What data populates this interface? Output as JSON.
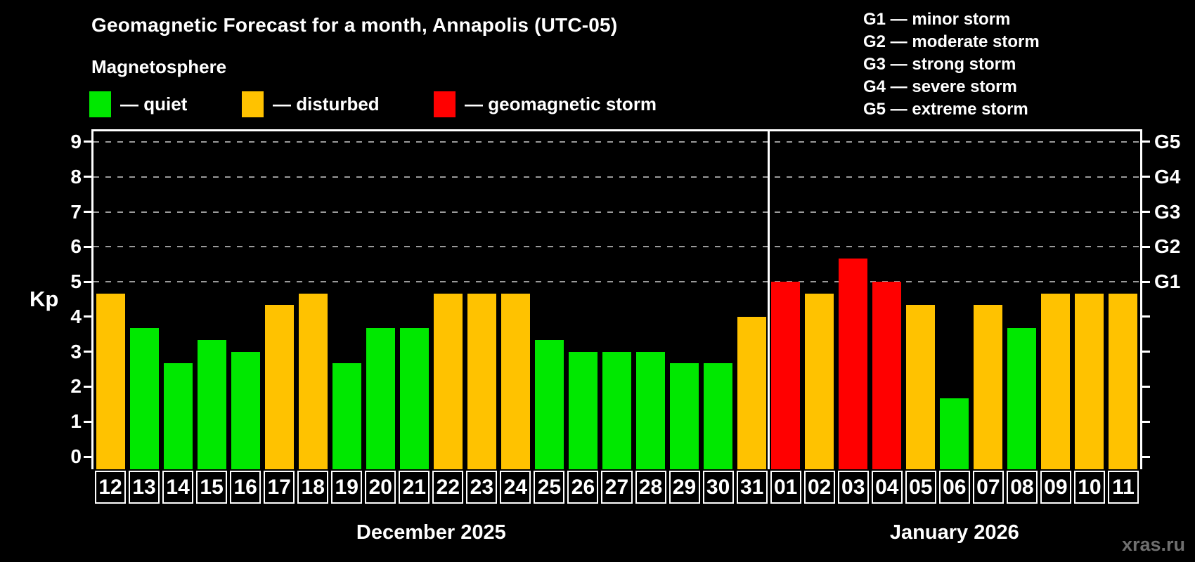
{
  "title": "Geomagnetic Forecast for a month, Annapolis (UTC-05)",
  "legend": {
    "title": "Magnetosphere",
    "items": [
      {
        "label": "— quiet",
        "status": "quiet"
      },
      {
        "label": "— disturbed",
        "status": "disturbed"
      },
      {
        "label": "— geomagnetic storm",
        "status": "storm"
      }
    ]
  },
  "g_legend": {
    "items": [
      "G1 — minor storm",
      "G2 — moderate storm",
      "G3 — strong storm",
      "G4 — severe storm",
      "G5 — extreme storm"
    ]
  },
  "colors": {
    "quiet": "#00e800",
    "disturbed": "#ffc200",
    "storm": "#ff0000",
    "axis": "#ffffff",
    "gridline": "#9a9a9a",
    "background": "#000000",
    "watermark_text": "#6f6f6f"
  },
  "watermark": "xras.ru",
  "chart_data": {
    "type": "bar",
    "title": "Geomagnetic Forecast for a month, Annapolis (UTC-05)",
    "ylabel": "Kp",
    "ylim": [
      0,
      9
    ],
    "y_ticks": [
      0,
      1,
      2,
      3,
      4,
      5,
      6,
      7,
      8,
      9
    ],
    "grid": "horizontal dashed at Kp 5-9 only",
    "right_axis_labels": [
      {
        "kp": 5,
        "label": "G1"
      },
      {
        "kp": 6,
        "label": "G2"
      },
      {
        "kp": 7,
        "label": "G3"
      },
      {
        "kp": 8,
        "label": "G4"
      },
      {
        "kp": 9,
        "label": "G5"
      }
    ],
    "months": [
      {
        "label": "December 2025",
        "entries": [
          {
            "day": "12",
            "kp": 4.67,
            "status": "disturbed"
          },
          {
            "day": "13",
            "kp": 3.67,
            "status": "quiet"
          },
          {
            "day": "14",
            "kp": 2.67,
            "status": "quiet"
          },
          {
            "day": "15",
            "kp": 3.33,
            "status": "quiet"
          },
          {
            "day": "16",
            "kp": 3.0,
            "status": "quiet"
          },
          {
            "day": "17",
            "kp": 4.33,
            "status": "disturbed"
          },
          {
            "day": "18",
            "kp": 4.67,
            "status": "disturbed"
          },
          {
            "day": "19",
            "kp": 2.67,
            "status": "quiet"
          },
          {
            "day": "20",
            "kp": 3.67,
            "status": "quiet"
          },
          {
            "day": "21",
            "kp": 3.67,
            "status": "quiet"
          },
          {
            "day": "22",
            "kp": 4.67,
            "status": "disturbed"
          },
          {
            "day": "23",
            "kp": 4.67,
            "status": "disturbed"
          },
          {
            "day": "24",
            "kp": 4.67,
            "status": "disturbed"
          },
          {
            "day": "25",
            "kp": 3.33,
            "status": "quiet"
          },
          {
            "day": "26",
            "kp": 3.0,
            "status": "quiet"
          },
          {
            "day": "27",
            "kp": 3.0,
            "status": "quiet"
          },
          {
            "day": "28",
            "kp": 3.0,
            "status": "quiet"
          },
          {
            "day": "29",
            "kp": 2.67,
            "status": "quiet"
          },
          {
            "day": "30",
            "kp": 2.67,
            "status": "quiet"
          },
          {
            "day": "31",
            "kp": 4.0,
            "status": "disturbed"
          }
        ]
      },
      {
        "label": "January 2026",
        "entries": [
          {
            "day": "01",
            "kp": 5.0,
            "status": "storm"
          },
          {
            "day": "02",
            "kp": 4.67,
            "status": "disturbed"
          },
          {
            "day": "03",
            "kp": 5.67,
            "status": "storm"
          },
          {
            "day": "04",
            "kp": 5.0,
            "status": "storm"
          },
          {
            "day": "05",
            "kp": 4.33,
            "status": "disturbed"
          },
          {
            "day": "06",
            "kp": 1.67,
            "status": "quiet"
          },
          {
            "day": "07",
            "kp": 4.33,
            "status": "disturbed"
          },
          {
            "day": "08",
            "kp": 3.67,
            "status": "quiet"
          },
          {
            "day": "09",
            "kp": 4.67,
            "status": "disturbed"
          },
          {
            "day": "10",
            "kp": 4.67,
            "status": "disturbed"
          },
          {
            "day": "11",
            "kp": 4.67,
            "status": "disturbed"
          }
        ]
      }
    ]
  }
}
